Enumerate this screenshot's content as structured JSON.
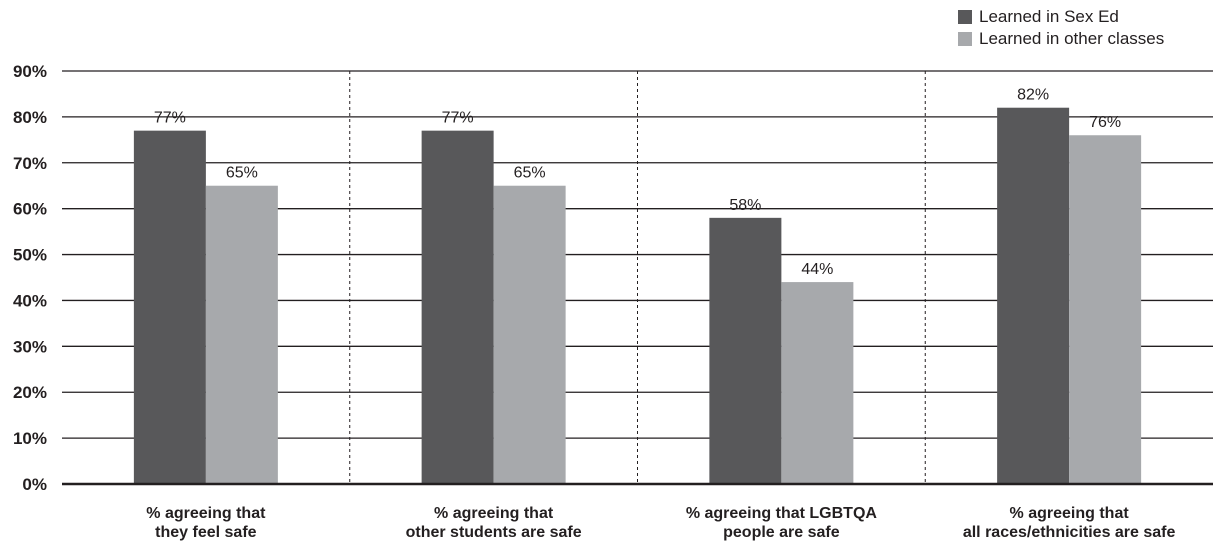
{
  "chart_data": {
    "type": "bar",
    "categories": [
      [
        "% agreeing that",
        "they feel safe"
      ],
      [
        "% agreeing that",
        "other students are safe"
      ],
      [
        "% agreeing that LGBTQA",
        "people are safe"
      ],
      [
        "% agreeing that",
        "all races/ethnicities are safe"
      ]
    ],
    "series": [
      {
        "name": "Learned in Sex Ed",
        "color": "#58585a",
        "values": [
          77,
          77,
          58,
          82
        ],
        "labels": [
          "77%",
          "77%",
          "58%",
          "82%"
        ]
      },
      {
        "name": "Learned in other classes",
        "color": "#a7a9ac",
        "values": [
          65,
          65,
          44,
          76
        ],
        "labels": [
          "65%",
          "65%",
          "44%",
          "76%"
        ]
      }
    ],
    "y_ticks": [
      "0%",
      "10%",
      "20%",
      "30%",
      "40%",
      "50%",
      "60%",
      "70%",
      "80%",
      "90%"
    ],
    "ylim": [
      0,
      90
    ],
    "grid": true,
    "legend_position": "top-right"
  }
}
